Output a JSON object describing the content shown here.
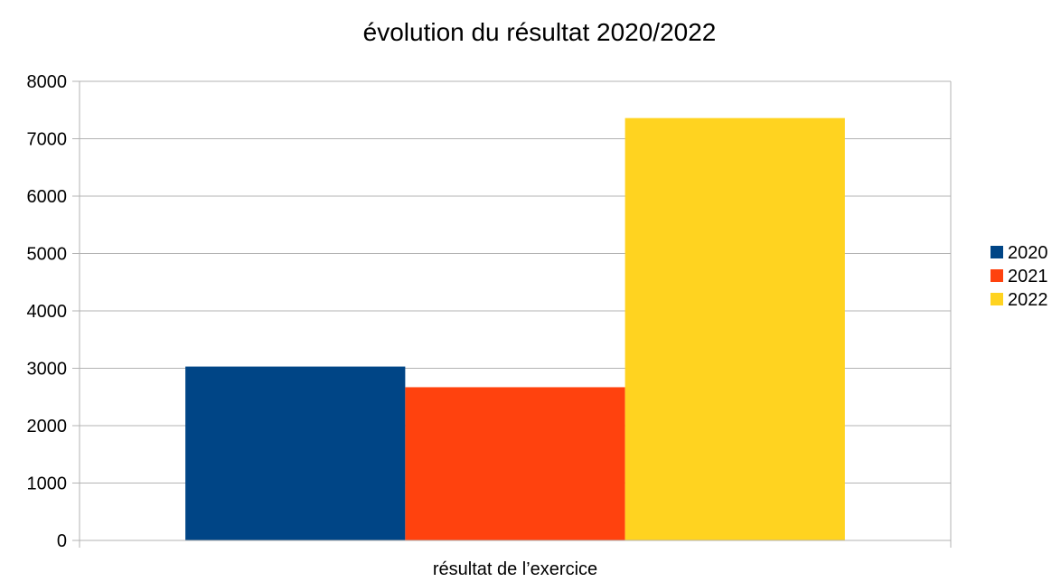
{
  "chart_data": {
    "type": "bar",
    "title": "évolution du résultat 2020/2022",
    "xlabel": "",
    "ylabel": "",
    "categories": [
      "résultat de l’exercice"
    ],
    "series": [
      {
        "name": "2020",
        "values": [
          3030
        ],
        "color": "#004586"
      },
      {
        "name": "2021",
        "values": [
          2670
        ],
        "color": "#ff420e"
      },
      {
        "name": "2022",
        "values": [
          7360
        ],
        "color": "#ffd320"
      }
    ],
    "ylim": [
      0,
      8000
    ],
    "yticks": [
      0,
      1000,
      2000,
      3000,
      4000,
      5000,
      6000,
      7000,
      8000
    ],
    "grid": true,
    "legend_position": "right",
    "grid_color": "#b3b3b3",
    "axis_color": "#b3b3b3"
  }
}
